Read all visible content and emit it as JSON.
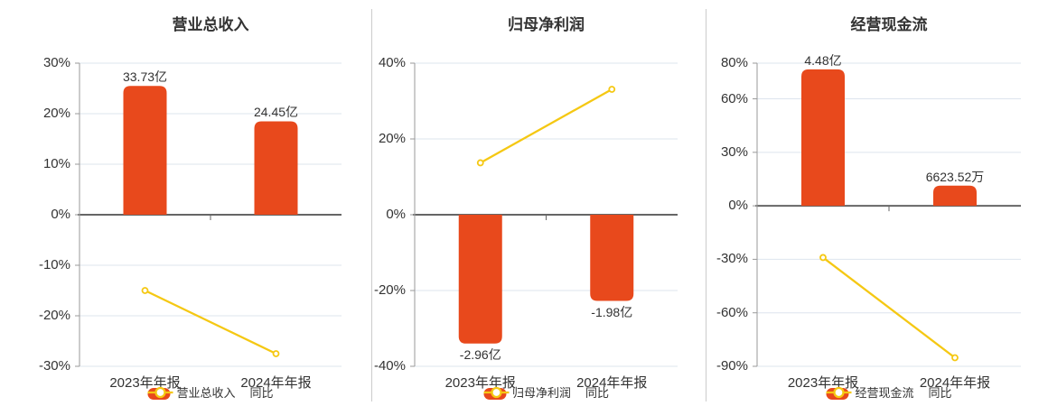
{
  "page": {
    "background": "#ffffff"
  },
  "colors": {
    "bar": "#e8491c",
    "line": "#f5c813",
    "grid": "#dde4ee",
    "zero_axis": "#666666",
    "axis_line": "#999999",
    "text": "#333333",
    "divider": "#cccccc",
    "marker_fill": "#ffffff"
  },
  "chart_data": [
    {
      "type": "bar",
      "title": "营业总收入",
      "categories": [
        "2023年年报",
        "2024年年报"
      ],
      "series": [
        {
          "name": "营业总收入",
          "type": "bar",
          "values": [
            33.73,
            24.45
          ],
          "unit": "亿",
          "data_labels": [
            "33.73亿",
            "24.45亿"
          ]
        },
        {
          "name": "同比",
          "type": "line",
          "unit": "%",
          "values": [
            -15.0,
            -27.5
          ]
        }
      ],
      "xlabel": "",
      "ylabel": "",
      "ylim": [
        -30,
        30
      ],
      "yticks": [
        30,
        20,
        10,
        0,
        -10,
        -20,
        -30
      ],
      "ytick_labels": [
        "30%",
        "20%",
        "10%",
        "0%",
        "-10%",
        "-20%",
        "-30%"
      ],
      "grid": true,
      "legend_position": "bottom"
    },
    {
      "type": "bar",
      "title": "归母净利润",
      "categories": [
        "2023年年报",
        "2024年年报"
      ],
      "series": [
        {
          "name": "归母净利润",
          "type": "bar",
          "values": [
            -2.96,
            -1.98
          ],
          "unit": "亿",
          "data_labels": [
            "-2.96亿",
            "-1.98亿"
          ]
        },
        {
          "name": "同比",
          "type": "line",
          "unit": "%",
          "values": [
            13.7,
            33.1
          ]
        }
      ],
      "xlabel": "",
      "ylabel": "",
      "ylim": [
        -40,
        40
      ],
      "yticks": [
        40,
        20,
        0,
        -20,
        -40
      ],
      "ytick_labels": [
        "40%",
        "20%",
        "0%",
        "-20%",
        "-40%"
      ],
      "grid": true,
      "legend_position": "bottom"
    },
    {
      "type": "bar",
      "title": "经营现金流",
      "categories": [
        "2023年年报",
        "2024年年报"
      ],
      "series": [
        {
          "name": "经营现金流",
          "type": "bar",
          "values": [
            4.48,
            0.662352
          ],
          "unit": "亿",
          "data_labels": [
            "4.48亿",
            "6623.52万"
          ]
        },
        {
          "name": "同比",
          "type": "line",
          "unit": "%",
          "values": [
            -29.0,
            -85.2
          ]
        }
      ],
      "xlabel": "",
      "ylabel": "",
      "ylim": [
        -90,
        80
      ],
      "yticks": [
        80,
        60,
        30,
        0,
        -30,
        -60,
        -90
      ],
      "ytick_labels": [
        "80%",
        "60%",
        "30%",
        "0%",
        "-30%",
        "-60%",
        "-90%"
      ],
      "grid": true,
      "legend_position": "bottom"
    }
  ]
}
